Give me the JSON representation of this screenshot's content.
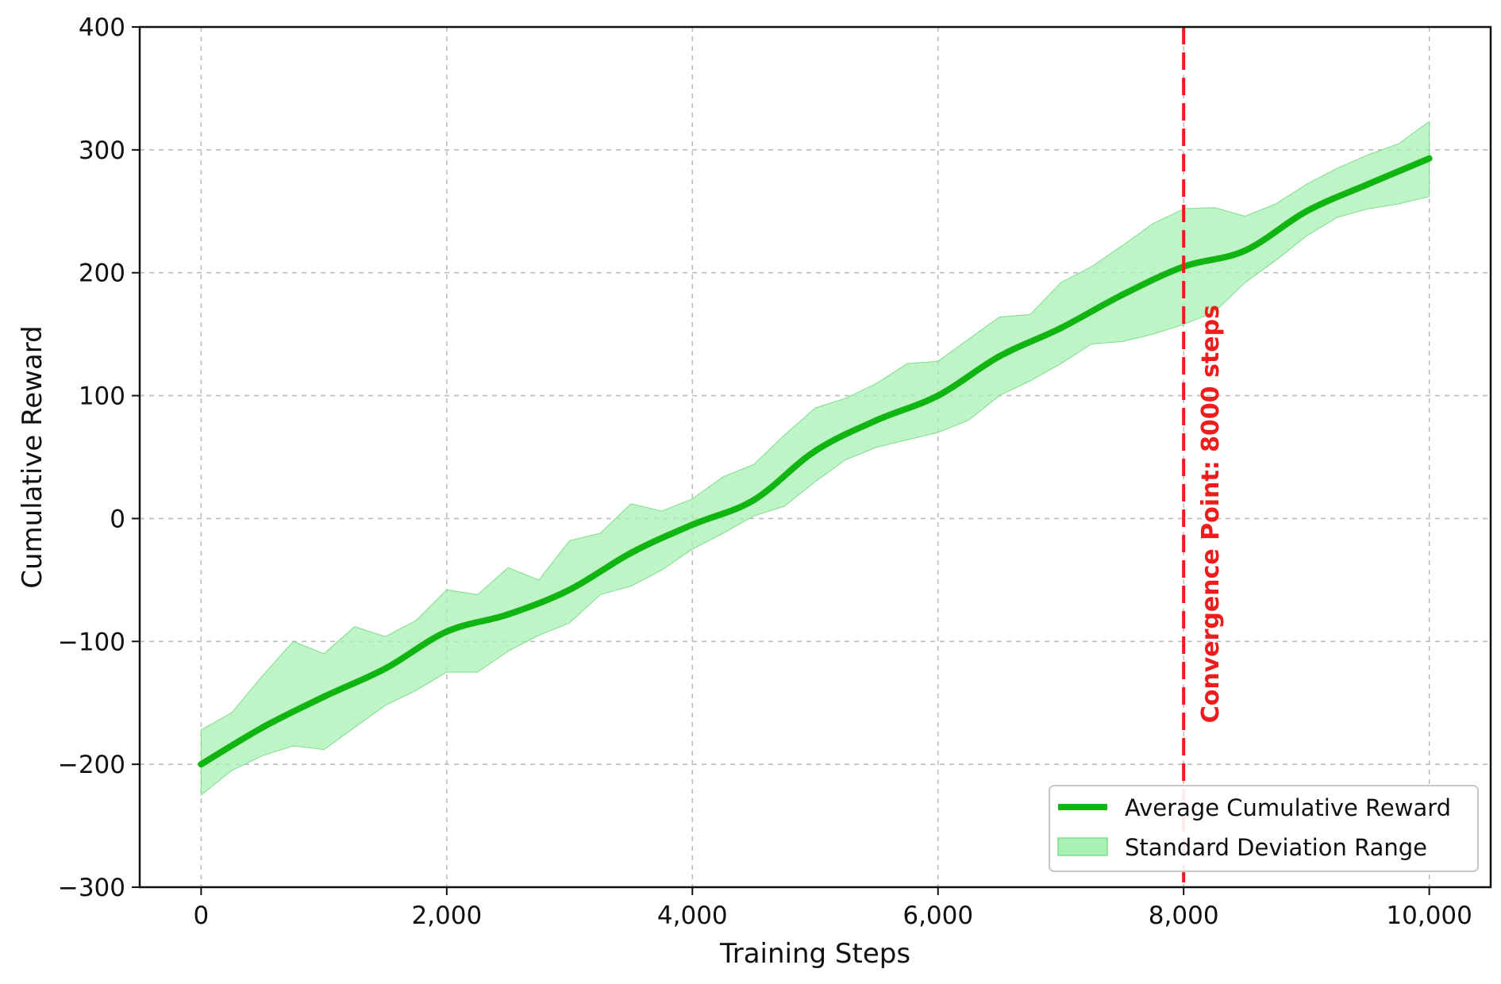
{
  "chart_data": {
    "type": "line",
    "xlabel": "Training Steps",
    "ylabel": "Cumulative Reward",
    "xlim": [
      -500,
      10500
    ],
    "ylim": [
      -300,
      400
    ],
    "x_ticks": [
      0,
      2000,
      4000,
      6000,
      8000,
      10000
    ],
    "x_tick_labels": [
      "0",
      "2,000",
      "4,000",
      "6,000",
      "8,000",
      "10,000"
    ],
    "y_ticks": [
      -300,
      -200,
      -100,
      0,
      100,
      200,
      300,
      400
    ],
    "y_tick_labels": [
      "−300",
      "−200",
      "−100",
      "0",
      "100",
      "200",
      "300",
      "400"
    ],
    "grid": true,
    "legend_position": "lower-right",
    "series": [
      {
        "name": "Average Cumulative Reward",
        "color": "#11b511",
        "x": [
          0,
          500,
          1000,
          1500,
          2000,
          2500,
          3000,
          3500,
          4000,
          4500,
          5000,
          5500,
          6000,
          6500,
          7000,
          7500,
          8000,
          8500,
          9000,
          9500,
          10000
        ],
        "y": [
          -200,
          -170,
          -145,
          -122,
          -92,
          -78,
          -58,
          -28,
          -5,
          15,
          55,
          80,
          100,
          132,
          155,
          182,
          205,
          218,
          250,
          272,
          293
        ]
      }
    ],
    "band": {
      "name": "Standard Deviation Range",
      "color": "#8fe89c",
      "x": [
        0,
        250,
        500,
        750,
        1000,
        1250,
        1500,
        1750,
        2000,
        2250,
        2500,
        2750,
        3000,
        3250,
        3500,
        3750,
        4000,
        4250,
        4500,
        4750,
        5000,
        5250,
        5500,
        5750,
        6000,
        6250,
        6500,
        6750,
        7000,
        7250,
        7500,
        7750,
        8000,
        8250,
        8500,
        8750,
        9000,
        9250,
        9500,
        9750,
        10000
      ],
      "upper": [
        -172,
        -158,
        -128,
        -100,
        -110,
        -88,
        -96,
        -83,
        -58,
        -62,
        -40,
        -50,
        -18,
        -12,
        12,
        6,
        16,
        34,
        44,
        68,
        90,
        98,
        110,
        126,
        128,
        146,
        164,
        166,
        192,
        205,
        222,
        240,
        252,
        253,
        246,
        256,
        272,
        285,
        296,
        305,
        323
      ],
      "lower": [
        -225,
        -205,
        -193,
        -185,
        -188,
        -170,
        -152,
        -140,
        -125,
        -125,
        -108,
        -95,
        -85,
        -62,
        -55,
        -42,
        -25,
        -12,
        2,
        10,
        30,
        48,
        58,
        64,
        70,
        80,
        100,
        112,
        126,
        142,
        144,
        150,
        158,
        168,
        192,
        210,
        230,
        245,
        252,
        256,
        262
      ]
    },
    "convergence_line": {
      "x": 8000,
      "label": "Convergence Point: 8000 steps",
      "color": "#ee1c1c"
    }
  }
}
